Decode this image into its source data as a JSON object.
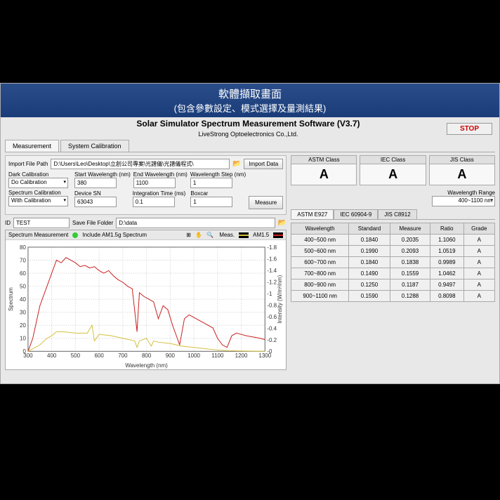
{
  "banner": {
    "line1": "軟體擷取畫面",
    "line2": "(包含參數設定、模式選擇及量測結果)"
  },
  "title": "Solar Simulator Spectrum Measurement Software (V3.7)",
  "subtitle": "LiveStrong Optoelectronics Co.,Ltd.",
  "stop": "STOP",
  "topTabs": {
    "t1": "Measurement",
    "t2": "System Calibration"
  },
  "import": {
    "pathLabel": "Import File Path",
    "pathVal": "D:\\Users\\Leo\\Desktop\\立創公司專案\\光譜儀\\光譜儀程式\\",
    "btn": "Import Data"
  },
  "cal": {
    "darkLabel": "Dark Calibration",
    "darkVal": "Do Calibration",
    "specLabel": "Spectrum Calibration",
    "specVal": "With Calibration",
    "startLabel": "Start Wavelength (nm)",
    "startVal": "380",
    "endLabel": "End Wavelength (nm)",
    "endVal": "1100",
    "stepLabel": "Wavelength Step (nm)",
    "stepVal": "1",
    "snLabel": "Device SN",
    "snVal": "63043",
    "intLabel": "Integration Time (ms)",
    "intVal": "0.1",
    "boxcarLabel": "Boxcar",
    "boxcarVal": "1",
    "measureBtn": "Measure"
  },
  "id": {
    "label": "ID",
    "val": "TEST",
    "saveLabel": "Save File Folder",
    "saveVal": "D:\\data"
  },
  "chart": {
    "title": "Spectrum Measurement",
    "include": "Include AM1.5g Spectrum",
    "measLabel": "Meas.",
    "amLabel": "AM1.5",
    "measColor": "#d4c040",
    "amColor": "#cc2020",
    "xlabel": "Wavelength (nm)",
    "ylabel": "Spectrum",
    "y2label": "Intensity (W/m²/nm)",
    "xlim": [
      300,
      1300
    ],
    "ylim": [
      0,
      80
    ],
    "y2lim": [
      0,
      1.8
    ],
    "xticks": [
      300,
      400,
      500,
      600,
      700,
      800,
      900,
      1000,
      1100,
      1200,
      1300
    ],
    "yticks": [
      0,
      10,
      20,
      30,
      40,
      50,
      60,
      70,
      80
    ],
    "y2ticks": [
      0,
      0.2,
      0.4,
      0.6,
      0.8,
      1.0,
      1.2,
      1.4,
      1.6,
      1.8
    ],
    "meas": [
      [
        300,
        0
      ],
      [
        350,
        5
      ],
      [
        380,
        10
      ],
      [
        400,
        12
      ],
      [
        420,
        15
      ],
      [
        450,
        15
      ],
      [
        500,
        14
      ],
      [
        550,
        14
      ],
      [
        570,
        20
      ],
      [
        580,
        8
      ],
      [
        600,
        13
      ],
      [
        650,
        12
      ],
      [
        700,
        10
      ],
      [
        750,
        8
      ],
      [
        760,
        3
      ],
      [
        770,
        8
      ],
      [
        800,
        10
      ],
      [
        820,
        4
      ],
      [
        830,
        8
      ],
      [
        850,
        7
      ],
      [
        900,
        6
      ],
      [
        950,
        4
      ],
      [
        1000,
        3
      ],
      [
        1050,
        2
      ],
      [
        1100,
        1
      ],
      [
        1150,
        0.5
      ],
      [
        1200,
        0.3
      ],
      [
        1300,
        0
      ]
    ],
    "am15": [
      [
        300,
        0
      ],
      [
        320,
        10
      ],
      [
        350,
        35
      ],
      [
        380,
        50
      ],
      [
        400,
        60
      ],
      [
        420,
        70
      ],
      [
        440,
        68
      ],
      [
        460,
        72
      ],
      [
        480,
        70
      ],
      [
        500,
        68
      ],
      [
        520,
        65
      ],
      [
        540,
        66
      ],
      [
        560,
        64
      ],
      [
        580,
        65
      ],
      [
        600,
        62
      ],
      [
        620,
        60
      ],
      [
        640,
        62
      ],
      [
        660,
        58
      ],
      [
        680,
        55
      ],
      [
        700,
        53
      ],
      [
        720,
        50
      ],
      [
        740,
        48
      ],
      [
        760,
        15
      ],
      [
        770,
        45
      ],
      [
        790,
        42
      ],
      [
        810,
        40
      ],
      [
        830,
        38
      ],
      [
        850,
        25
      ],
      [
        870,
        35
      ],
      [
        890,
        32
      ],
      [
        910,
        20
      ],
      [
        930,
        10
      ],
      [
        940,
        5
      ],
      [
        960,
        25
      ],
      [
        980,
        28
      ],
      [
        1000,
        26
      ],
      [
        1020,
        24
      ],
      [
        1040,
        22
      ],
      [
        1060,
        20
      ],
      [
        1080,
        18
      ],
      [
        1100,
        10
      ],
      [
        1120,
        5
      ],
      [
        1140,
        3
      ],
      [
        1160,
        12
      ],
      [
        1180,
        14
      ],
      [
        1200,
        13
      ],
      [
        1220,
        12
      ],
      [
        1250,
        11
      ],
      [
        1280,
        10
      ],
      [
        1300,
        9
      ]
    ]
  },
  "classes": {
    "c1Label": "ASTM Class",
    "c1Val": "A",
    "c2Label": "IEC Class",
    "c2Val": "A",
    "c3Label": "JIS Class",
    "c3Val": "A"
  },
  "wr": {
    "label": "Wavelength Range",
    "val": "400~1100 nm"
  },
  "specTabs": {
    "t1": "ASTM E927",
    "t2": "IEC 60904-9",
    "t3": "JIS C8912"
  },
  "table": {
    "h1": "Wavelength",
    "h2": "Standard",
    "h3": "Measure",
    "h4": "Ratio",
    "h5": "Grade",
    "rows": [
      [
        "400~500 nm",
        "0.1840",
        "0.2035",
        "1.1060",
        "A"
      ],
      [
        "500~600 nm",
        "0.1990",
        "0.2093",
        "1.0519",
        "A"
      ],
      [
        "600~700 nm",
        "0.1840",
        "0.1838",
        "0.9989",
        "A"
      ],
      [
        "700~800 nm",
        "0.1490",
        "0.1559",
        "1.0462",
        "A"
      ],
      [
        "800~900 nm",
        "0.1250",
        "0.1187",
        "0.9497",
        "A"
      ],
      [
        "900~1100 nm",
        "0.1590",
        "0.1288",
        "0.8098",
        "A"
      ]
    ]
  }
}
